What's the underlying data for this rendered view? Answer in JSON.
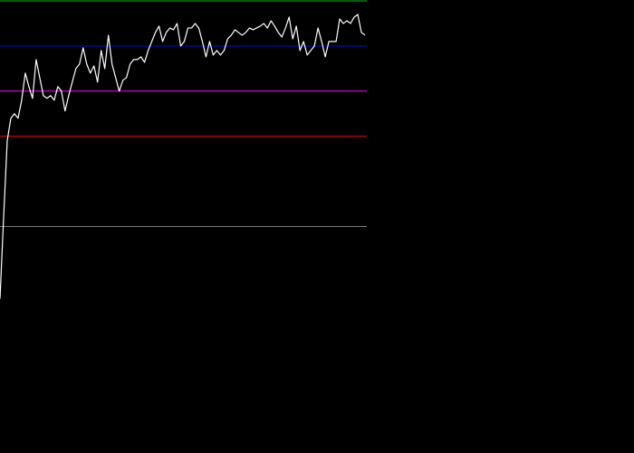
{
  "chart_data": {
    "type": "line",
    "ylim": [
      0,
      100
    ],
    "reference_lines": [
      {
        "value": 100,
        "color": "#00c000"
      },
      {
        "value": 90,
        "color": "#0000ff"
      },
      {
        "value": 80,
        "color": "#ff00ff"
      },
      {
        "value": 70,
        "color": "#ff0000"
      },
      {
        "value": 50,
        "color": "#808080"
      }
    ],
    "series": [
      {
        "color": "#ffffff",
        "values": [
          34,
          52,
          69,
          74,
          75,
          74,
          78,
          84,
          81,
          78.4,
          87,
          83,
          79,
          78.4,
          79,
          78,
          81,
          80,
          75.6,
          79,
          82,
          85,
          86,
          89.6,
          86,
          84,
          85.6,
          82,
          89,
          85,
          92.4,
          86,
          83,
          80,
          82.4,
          83,
          86,
          87,
          87,
          87.6,
          86.4,
          89,
          91,
          93,
          94.4,
          91,
          93,
          94,
          93.6,
          95,
          90,
          91,
          94,
          94,
          95,
          94,
          91,
          87.6,
          91,
          88,
          89,
          88,
          89,
          91.6,
          92.4,
          93.6,
          93,
          92.4,
          93,
          94,
          93.6,
          94,
          94.4,
          95,
          94,
          95.6,
          94.4,
          93,
          92,
          94,
          96.4,
          91.6,
          94.4,
          89,
          91,
          88,
          89,
          90,
          94,
          91,
          87.6,
          91,
          91,
          91,
          96,
          95,
          95.6,
          95,
          96.4,
          97,
          93,
          92.4
        ]
      }
    ]
  }
}
